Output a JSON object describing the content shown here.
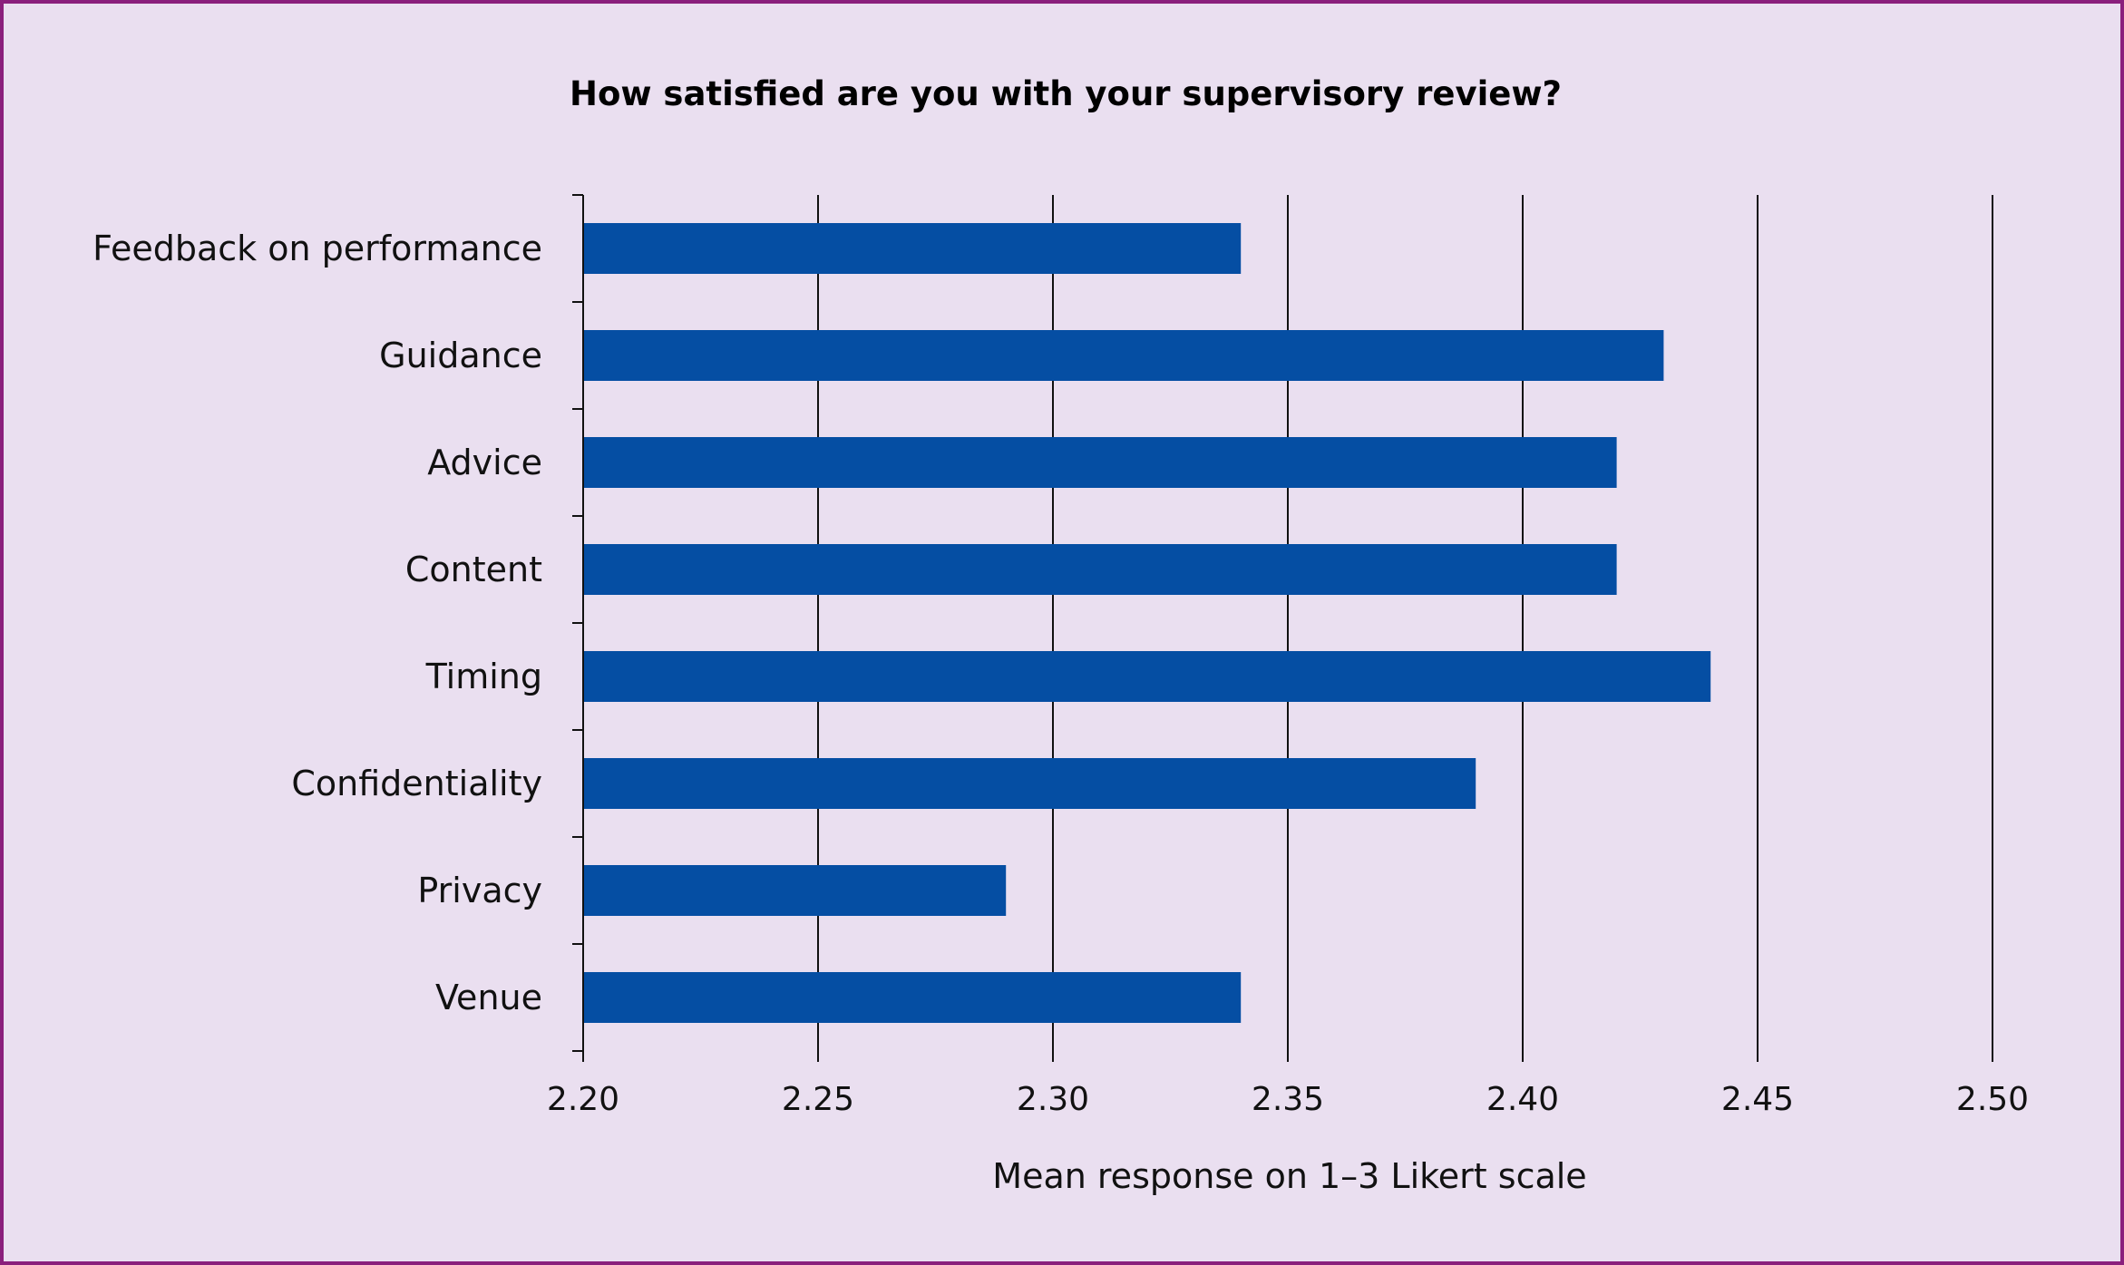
{
  "chart_data": {
    "type": "bar",
    "orientation": "horizontal",
    "title": "How satisfied are you with your supervisory review?",
    "xlabel": "Mean response on 1–3 Likert scale",
    "ylabel": "",
    "categories": [
      "Feedback on performance",
      "Guidance",
      "Advice",
      "Content",
      "Timing",
      "Confidentiality",
      "Privacy",
      "Venue"
    ],
    "values": [
      2.34,
      2.43,
      2.42,
      2.42,
      2.44,
      2.39,
      2.29,
      2.34
    ],
    "xlim": [
      2.2,
      2.5
    ],
    "xticks": [
      "2.20",
      "2.25",
      "2.30",
      "2.35",
      "2.40",
      "2.45",
      "2.50"
    ],
    "grid": "vertical",
    "legend": "none",
    "bar_color": "#054ea3",
    "background_color": "#eadff0",
    "border_color": "#8a1f7c"
  }
}
